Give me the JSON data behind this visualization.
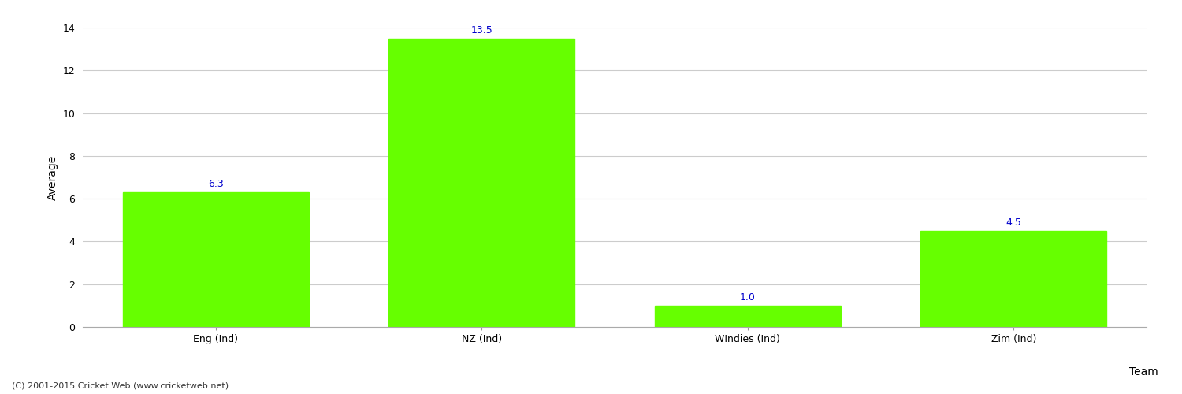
{
  "categories": [
    "Eng (Ind)",
    "NZ (Ind)",
    "WIndies (Ind)",
    "Zim (Ind)"
  ],
  "values": [
    6.3,
    13.5,
    1.0,
    4.5
  ],
  "bar_color": "#66ff00",
  "bar_edge_color": "#66ff00",
  "xlabel": "Team",
  "ylabel": "Average",
  "ylim": [
    0,
    14
  ],
  "yticks": [
    0,
    2,
    4,
    6,
    8,
    10,
    12,
    14
  ],
  "label_color": "#0000cc",
  "label_fontsize": 9,
  "axis_fontsize": 10,
  "tick_fontsize": 9,
  "grid_color": "#cccccc",
  "background_color": "#ffffff",
  "footer_text": "(C) 2001-2015 Cricket Web (www.cricketweb.net)",
  "footer_fontsize": 8,
  "footer_color": "#333333"
}
